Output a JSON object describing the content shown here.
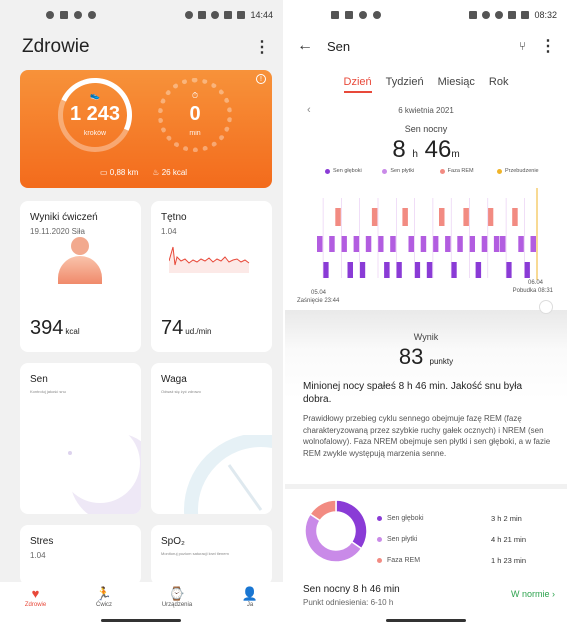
{
  "left": {
    "status": {
      "time": "14:44"
    },
    "title": "Zdrowie",
    "activity": {
      "steps_value": "1 243",
      "steps_label": "kroków",
      "minutes_value": "0",
      "minutes_label": "min",
      "distance": "0,88",
      "distance_unit": "km",
      "calories": "26",
      "calories_unit": "kcal"
    },
    "cards": {
      "exercise": {
        "title": "Wyniki ćwiczeń",
        "subtitle": "19.11.2020 Siła",
        "value": "394",
        "unit": "kcal"
      },
      "heart": {
        "title": "Tętno",
        "subtitle": "1.04",
        "value": "74",
        "unit": "ud./min"
      },
      "sleep": {
        "title": "Sen",
        "subtitle": "Kontroluj jakość snu"
      },
      "weight": {
        "title": "Waga",
        "subtitle": "Odważ się żyć zdrowo"
      },
      "stress": {
        "title": "Stres",
        "subtitle": "1.04"
      },
      "spo2": {
        "title": "SpO₂",
        "subtitle": "Monitoruj poziom saturacji krwi tlenem"
      }
    },
    "nav": [
      {
        "label": "Zdrowie",
        "icon": "heart-icon"
      },
      {
        "label": "Ćwicz",
        "icon": "runner-icon"
      },
      {
        "label": "Urządzenia",
        "icon": "watch-icon"
      },
      {
        "label": "Ja",
        "icon": "person-icon"
      }
    ]
  },
  "right": {
    "status": {
      "time": "08:32"
    },
    "title": "Sen",
    "tabs": [
      "Dzień",
      "Tydzień",
      "Miesiąc",
      "Rok"
    ],
    "date": "6 kwietnia 2021",
    "sleep_label": "Sen nocny",
    "hours": "8",
    "hours_unit": "h",
    "minutes": "46",
    "minutes_unit": "m",
    "legend": [
      {
        "label": "Sen głęboki",
        "color": "#8a3bd6"
      },
      {
        "label": "Sen płytki",
        "color": "#c98ae8"
      },
      {
        "label": "Faza REM",
        "color": "#f28b82"
      },
      {
        "label": "Przebudzenie",
        "color": "#f0b429"
      }
    ],
    "axis": {
      "start_date": "05.04",
      "start_label": "Zaśnięcie 23:44",
      "end_date": "06.04",
      "end_label": "Pobudka 08:31"
    },
    "score_label": "Wynik",
    "score": "83",
    "score_unit": "punkty",
    "summary": "Minionej nocy spałeś 8 h 46 min. Jakość snu była dobra.",
    "description": "Prawidłowy przebieg cyklu sennego obejmuje fazę REM (fazę charakteryzowaną przez szybkie ruchy gałek ocznych) i NREM (sen wolnofalowy). Faza NREM obejmuje sen płytki i sen głęboki, a w fazie REM zwykle występują marzenia senne.",
    "stages": [
      {
        "name": "Sen głęboki",
        "duration": "3 h 2 min",
        "color": "#8a3bd6",
        "minutes": 182
      },
      {
        "name": "Sen płytki",
        "duration": "4 h 21 min",
        "color": "#c98ae8",
        "minutes": 261
      },
      {
        "name": "Faza REM",
        "duration": "1 h 23 min",
        "color": "#f28b82",
        "minutes": 83
      }
    ],
    "footer": {
      "title": "Sen nocny  8 h 46 min",
      "subtitle": "Punkt odniesienia: 6-10 h",
      "status": "W normie"
    }
  }
}
